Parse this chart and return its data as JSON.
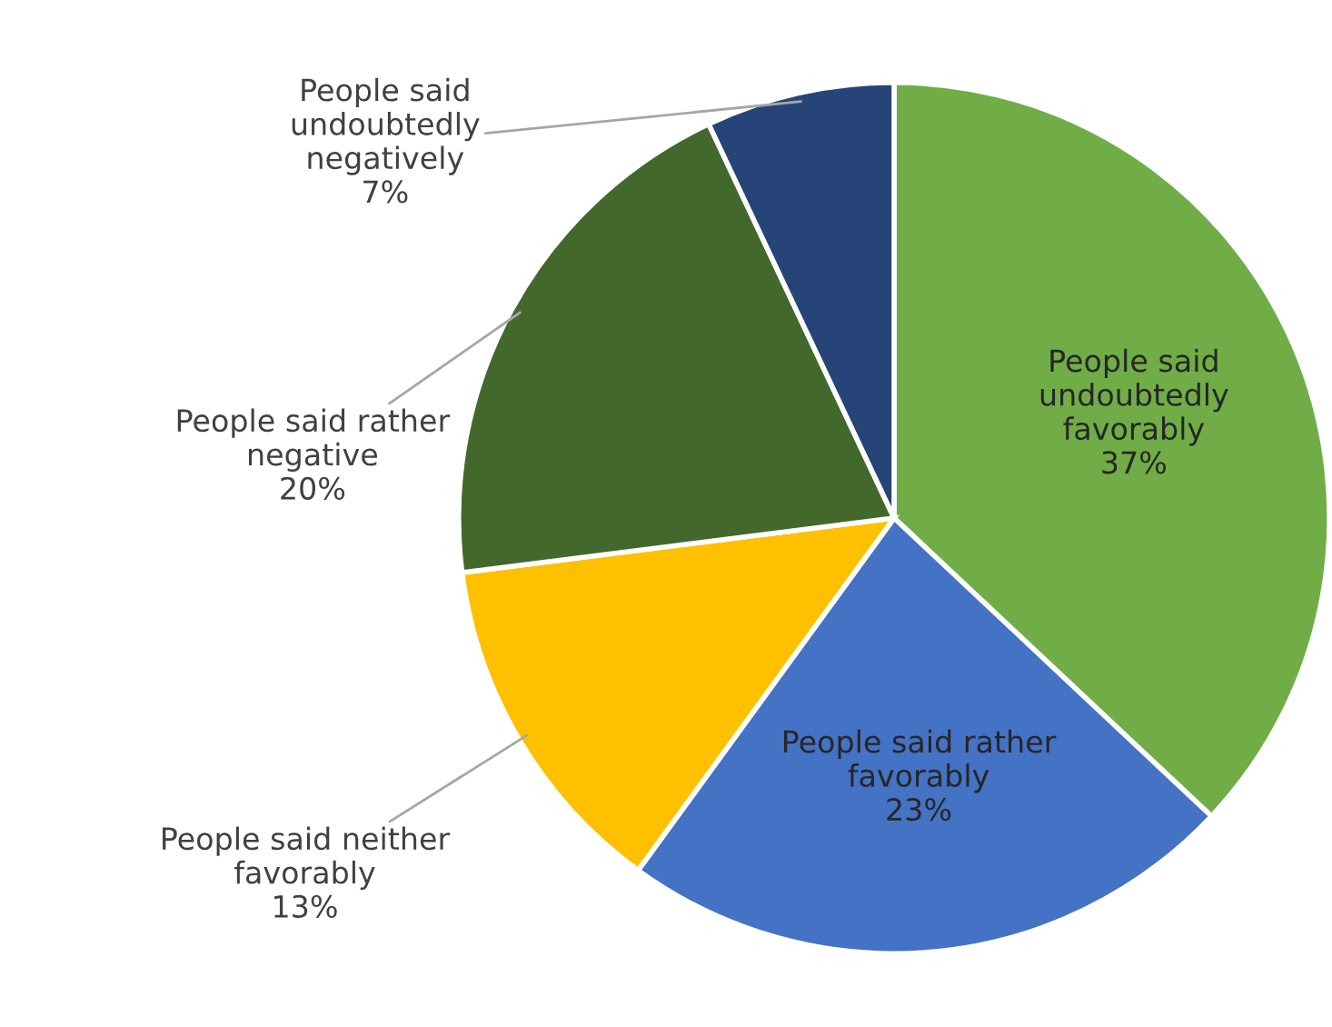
{
  "chart_data": {
    "type": "pie",
    "categories": [
      "People said undoubtedly favorably",
      "People said rather favorably",
      "People said neither favorably",
      "People said rather negative",
      "People said undoubtedly negatively"
    ],
    "values": [
      37,
      23,
      13,
      20,
      7
    ],
    "value_labels": [
      "37%",
      "23%",
      "13%",
      "20%",
      "7%"
    ],
    "colors": [
      "#70ad47",
      "#4472c4",
      "#ffc000",
      "#43682b",
      "#264478"
    ],
    "legend": false
  }
}
